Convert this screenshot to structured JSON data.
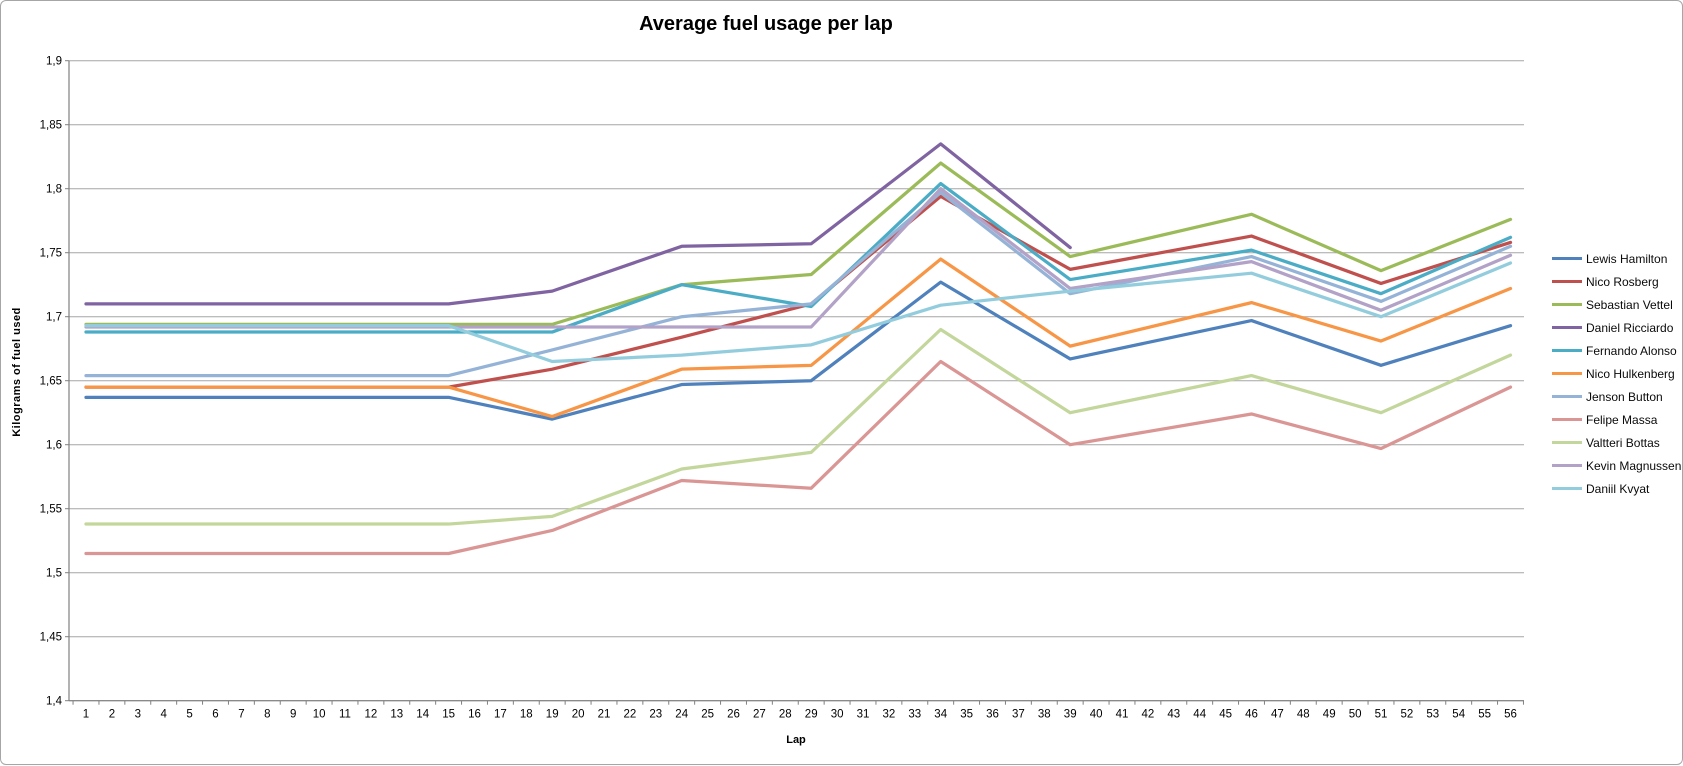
{
  "window": {
    "background": "#ffffff",
    "border_color": "#a6a6a6"
  },
  "chart_data": {
    "type": "line",
    "title": "Average fuel usage per lap",
    "xlabel": "Lap",
    "ylabel": "Kilograms of fuel used",
    "decimal_separator": ",",
    "grid": "horizontal",
    "grid_color": "#a6a6a6",
    "axis_color": "#808080",
    "legend_position": "right",
    "ylim": [
      1.4,
      1.9
    ],
    "y_tick_step": 0.05,
    "y_tick_labels": [
      "1,9",
      "1,85",
      "1,8",
      "1,75",
      "1,7",
      "1,65",
      "1,6",
      "1,55",
      "1,5",
      "1,45",
      "1,4"
    ],
    "x_tick_labels": [
      "1",
      "2",
      "3",
      "4",
      "5",
      "6",
      "7",
      "8",
      "9",
      "10",
      "11",
      "12",
      "13",
      "14",
      "15",
      "16",
      "17",
      "18",
      "19",
      "20",
      "21",
      "22",
      "23",
      "24",
      "25",
      "26",
      "27",
      "28",
      "29",
      "30",
      "31",
      "32",
      "33",
      "34",
      "35",
      "36",
      "37",
      "38",
      "39",
      "40",
      "41",
      "42",
      "43",
      "44",
      "45",
      "46",
      "47",
      "48",
      "49",
      "50",
      "51",
      "52",
      "53",
      "54",
      "55",
      "56"
    ],
    "x_points": [
      1,
      15,
      19,
      24,
      29,
      34,
      39,
      46,
      51,
      56
    ],
    "series": [
      {
        "name": "Lewis Hamilton",
        "color": "#4F81BD",
        "values": [
          1.637,
          1.637,
          1.62,
          1.647,
          1.65,
          1.727,
          1.667,
          1.697,
          1.662,
          1.693
        ]
      },
      {
        "name": "Nico Rosberg",
        "color": "#C0504D",
        "values": [
          1.645,
          1.645,
          1.659,
          1.684,
          1.71,
          1.794,
          1.737,
          1.763,
          1.726,
          1.758
        ]
      },
      {
        "name": "Sebastian Vettel",
        "color": "#9BBB59",
        "values": [
          1.694,
          1.694,
          1.694,
          1.725,
          1.733,
          1.82,
          1.747,
          1.78,
          1.736,
          1.776
        ]
      },
      {
        "name": "Daniel Ricciardo",
        "color": "#8064A2",
        "values": [
          1.71,
          1.71,
          1.72,
          1.755,
          1.757,
          1.835,
          1.754,
          null,
          null,
          null
        ]
      },
      {
        "name": "Fernando Alonso",
        "color": "#4BACC6",
        "values": [
          1.688,
          1.688,
          1.688,
          1.725,
          1.708,
          1.804,
          1.729,
          1.752,
          1.718,
          1.762
        ]
      },
      {
        "name": "Nico Hulkenberg",
        "color": "#F79646",
        "values": [
          1.645,
          1.645,
          1.622,
          1.659,
          1.662,
          1.745,
          1.677,
          1.711,
          1.681,
          1.722
        ]
      },
      {
        "name": "Jenson Button",
        "color": "#95B3D7",
        "values": [
          1.654,
          1.654,
          1.674,
          1.7,
          1.71,
          1.797,
          1.718,
          1.747,
          1.712,
          1.755
        ]
      },
      {
        "name": "Felipe Massa",
        "color": "#D99694",
        "values": [
          1.515,
          1.515,
          1.533,
          1.572,
          1.566,
          1.665,
          1.6,
          1.624,
          1.597,
          1.645
        ]
      },
      {
        "name": "Valtteri Bottas",
        "color": "#C3D69B",
        "values": [
          1.538,
          1.538,
          1.544,
          1.581,
          1.594,
          1.69,
          1.625,
          1.654,
          1.625,
          1.67
        ]
      },
      {
        "name": "Kevin Magnussen",
        "color": "#B2A2C7",
        "values": [
          1.692,
          1.692,
          1.692,
          1.692,
          1.692,
          1.8,
          1.722,
          1.743,
          1.705,
          1.748
        ]
      },
      {
        "name": "Daniil Kvyat",
        "color": "#93CDDD",
        "values": [
          1.693,
          1.693,
          1.665,
          1.67,
          1.678,
          1.709,
          1.72,
          1.734,
          1.7,
          1.742
        ]
      }
    ]
  }
}
